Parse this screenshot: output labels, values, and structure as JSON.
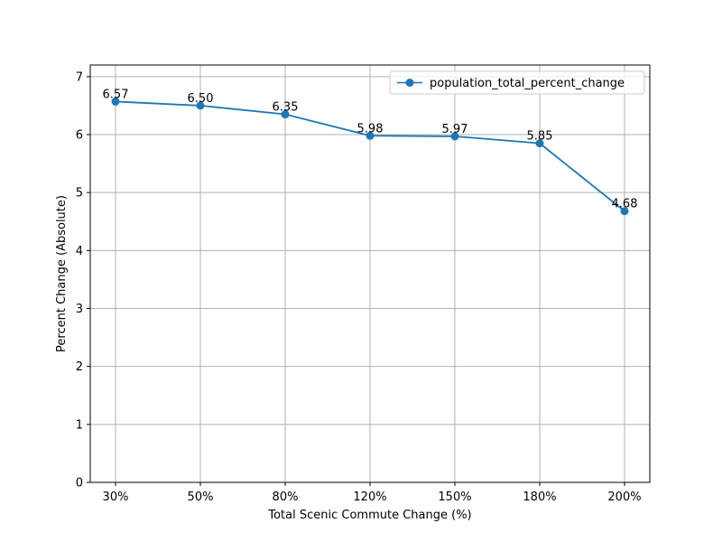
{
  "chart_data": {
    "type": "line",
    "title": "",
    "xlabel": "Total Scenic Commute Change (%)",
    "ylabel": "Percent Change (Absolute)",
    "categories": [
      "30%",
      "50%",
      "80%",
      "120%",
      "150%",
      "180%",
      "200%"
    ],
    "series": [
      {
        "name": "population_total_percent_change",
        "values": [
          6.57,
          6.5,
          6.35,
          5.98,
          5.97,
          5.85,
          4.68
        ],
        "labels": [
          "6.57",
          "6.50",
          "6.35",
          "5.98",
          "5.97",
          "5.85",
          "4.68"
        ],
        "color": "#1f77b4",
        "marker": "circle"
      }
    ],
    "ylim": [
      0,
      7.2
    ],
    "yticks": [
      0,
      1,
      2,
      3,
      4,
      5,
      6,
      7
    ],
    "ytick_labels": [
      "0",
      "1",
      "2",
      "3",
      "4",
      "5",
      "6",
      "7"
    ],
    "grid": true,
    "legend": "top-right"
  }
}
